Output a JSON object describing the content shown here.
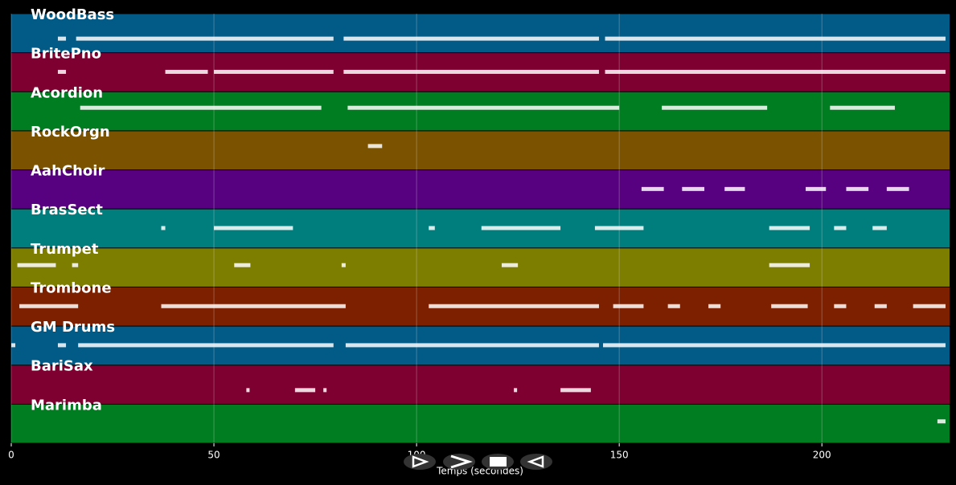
{
  "chart_data": {
    "type": "timeline",
    "x_label": "Temps (secondes)",
    "xlim": [
      0,
      231.5
    ],
    "xticks": [
      0,
      50,
      100,
      150,
      200
    ],
    "grid": true,
    "series": [
      {
        "name": "WoodBass",
        "color": "#025a86",
        "segments": [
          [
            11.5,
            13.5
          ],
          [
            16,
            79.5
          ],
          [
            82,
            145
          ],
          [
            146.5,
            230.5
          ]
        ]
      },
      {
        "name": "BritePno",
        "color": "#7e0030",
        "segments": [
          [
            11.5,
            13.5
          ],
          [
            38,
            48.5
          ],
          [
            50,
            79.5
          ],
          [
            82,
            145
          ],
          [
            146.5,
            230.5
          ]
        ]
      },
      {
        "name": "Acordion",
        "color": "#007d20",
        "segments": [
          [
            17,
            76.5
          ],
          [
            83,
            150
          ],
          [
            160.5,
            186.5
          ],
          [
            202,
            218
          ]
        ]
      },
      {
        "name": "RockOrgn",
        "color": "#7a5200",
        "segments": [
          [
            88,
            91.5
          ]
        ]
      },
      {
        "name": "AahChoir",
        "color": "#570080",
        "segments": [
          [
            155.5,
            161
          ],
          [
            165.5,
            171
          ],
          [
            176,
            181
          ],
          [
            196,
            201
          ],
          [
            206,
            211.5
          ],
          [
            216,
            221.5
          ]
        ]
      },
      {
        "name": "BrasSect",
        "color": "#007d7d",
        "segments": [
          [
            37,
            38
          ],
          [
            50,
            69.5
          ],
          [
            103,
            104.5
          ],
          [
            116,
            135.5
          ],
          [
            144,
            156
          ],
          [
            187,
            197
          ],
          [
            203,
            206
          ],
          [
            212.5,
            216
          ]
        ]
      },
      {
        "name": "Trumpet",
        "color": "#7d7d00",
        "segments": [
          [
            1.5,
            11
          ],
          [
            15,
            16.5
          ],
          [
            55,
            59
          ],
          [
            81.5,
            82.5
          ],
          [
            121,
            125
          ],
          [
            187,
            197
          ]
        ]
      },
      {
        "name": "Trombone",
        "color": "#7d2000",
        "segments": [
          [
            2,
            16.5
          ],
          [
            37,
            82.5
          ],
          [
            103,
            145
          ],
          [
            148.5,
            156
          ],
          [
            162,
            165
          ],
          [
            172,
            175
          ],
          [
            187.5,
            196.5
          ],
          [
            203,
            206
          ],
          [
            213,
            216
          ],
          [
            222.5,
            230.5
          ]
        ]
      },
      {
        "name": "GM Drums",
        "color": "#025a86",
        "segments": [
          [
            0,
            1
          ],
          [
            11.5,
            13.5
          ],
          [
            16.5,
            79.5
          ],
          [
            82.5,
            145
          ],
          [
            146,
            230.5
          ]
        ]
      },
      {
        "name": "BariSax",
        "color": "#7e0030",
        "segments": [
          [
            58,
            58.8
          ],
          [
            70,
            75
          ],
          [
            77,
            77.8
          ],
          [
            124,
            124.8
          ],
          [
            135.5,
            143
          ]
        ]
      },
      {
        "name": "Marimba",
        "color": "#007d20",
        "segments": [
          [
            228.5,
            230.5
          ]
        ]
      }
    ]
  }
}
